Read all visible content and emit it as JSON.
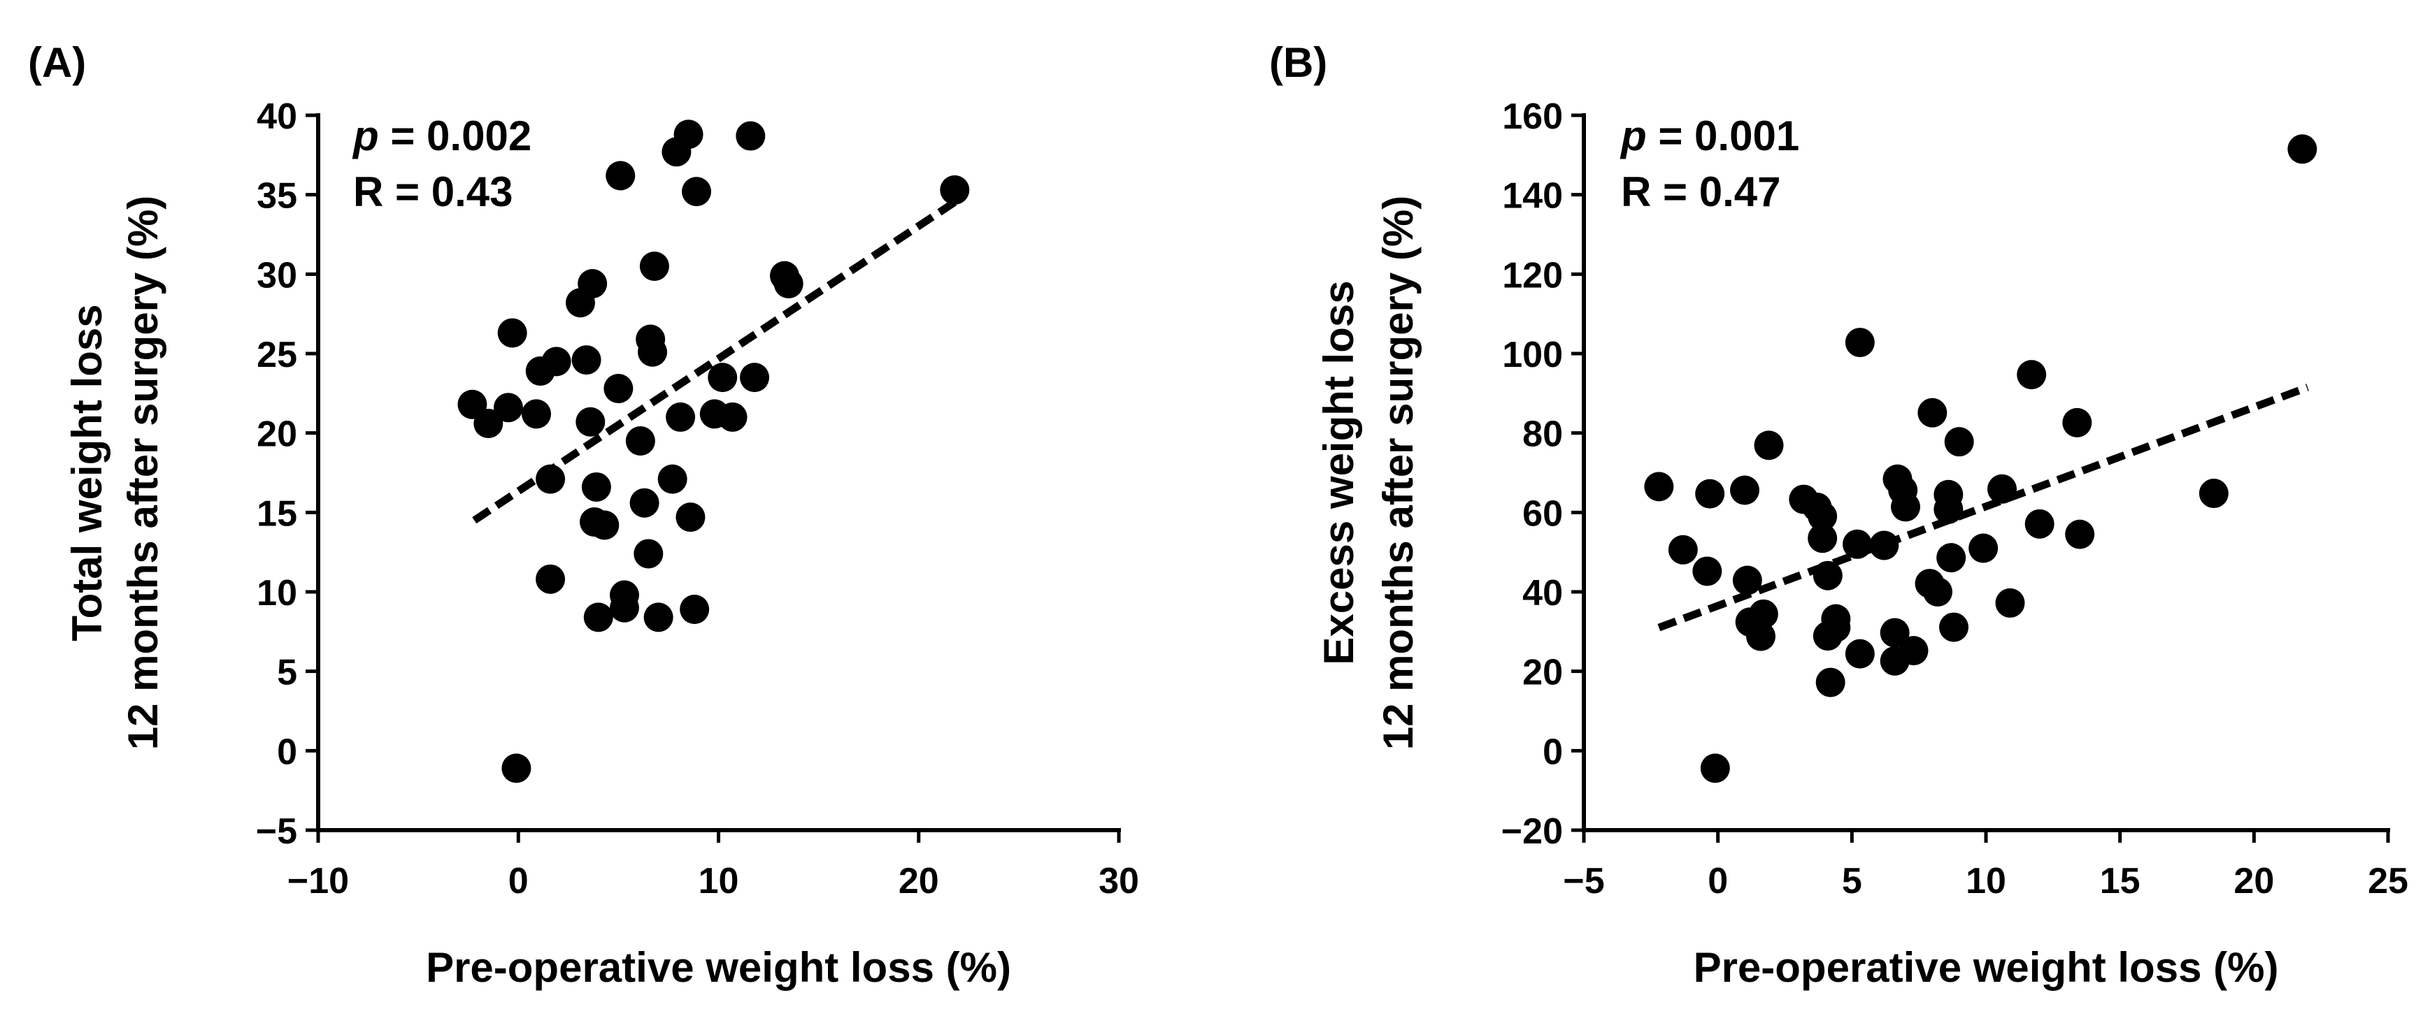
{
  "chart_data": [
    {
      "panel_label": "(A)",
      "type": "scatter",
      "xlabel": "Pre-operative weight loss (%)",
      "ylabel_lines": [
        "Total weight loss",
        "12 months after surgery (%)"
      ],
      "xlim": [
        -10,
        30
      ],
      "ylim": [
        -5,
        40
      ],
      "xticks": [
        -10,
        0,
        10,
        20,
        30
      ],
      "yticks": [
        -5,
        0,
        5,
        10,
        15,
        20,
        25,
        30,
        35,
        40
      ],
      "tick_labels_x": [
        "−10",
        "0",
        "10",
        "20",
        "30"
      ],
      "tick_labels_y": [
        "−5",
        "0",
        "5",
        "10",
        "15",
        "20",
        "25",
        "30",
        "35",
        "40"
      ],
      "annotation": {
        "p_label": "p",
        "p_value": " = 0.002",
        "r_text": "R = 0.43"
      },
      "trendline": {
        "x": [
          -2.2,
          22
        ],
        "y": [
          14.5,
          34.7
        ]
      },
      "points": [
        [
          -2.3,
          21.8
        ],
        [
          -1.5,
          20.6
        ],
        [
          -0.5,
          21.6
        ],
        [
          -0.3,
          26.3
        ],
        [
          -0.1,
          -1.1
        ],
        [
          0.9,
          21.2
        ],
        [
          1.1,
          23.9
        ],
        [
          1.6,
          17.1
        ],
        [
          1.6,
          10.8
        ],
        [
          1.9,
          24.5
        ],
        [
          3.1,
          28.2
        ],
        [
          3.4,
          24.6
        ],
        [
          3.6,
          20.7
        ],
        [
          3.7,
          29.4
        ],
        [
          3.8,
          14.4
        ],
        [
          3.9,
          16.6
        ],
        [
          4.0,
          8.4
        ],
        [
          4.3,
          14.2
        ],
        [
          5.0,
          22.8
        ],
        [
          5.1,
          36.2
        ],
        [
          5.3,
          9.8
        ],
        [
          5.3,
          9.0
        ],
        [
          6.1,
          19.5
        ],
        [
          6.3,
          15.6
        ],
        [
          6.5,
          12.4
        ],
        [
          6.6,
          25.9
        ],
        [
          6.7,
          25.1
        ],
        [
          6.8,
          30.5
        ],
        [
          7.0,
          8.4
        ],
        [
          7.7,
          17.1
        ],
        [
          7.9,
          37.7
        ],
        [
          8.1,
          21.0
        ],
        [
          8.5,
          38.8
        ],
        [
          8.6,
          14.7
        ],
        [
          8.8,
          8.9
        ],
        [
          8.9,
          35.2
        ],
        [
          9.8,
          21.2
        ],
        [
          10.2,
          23.5
        ],
        [
          10.7,
          21.0
        ],
        [
          11.6,
          38.7
        ],
        [
          11.8,
          23.5
        ],
        [
          13.3,
          29.9
        ],
        [
          13.5,
          29.4
        ],
        [
          21.8,
          35.3
        ]
      ]
    },
    {
      "panel_label": "(B)",
      "type": "scatter",
      "xlabel": "Pre-operative weight loss (%)",
      "ylabel_lines": [
        "Excess weight loss",
        "12 months after surgery (%)"
      ],
      "xlim": [
        -5,
        25
      ],
      "ylim": [
        -20,
        160
      ],
      "xticks": [
        -5,
        0,
        5,
        10,
        15,
        20,
        25
      ],
      "yticks": [
        -20,
        0,
        20,
        40,
        60,
        80,
        100,
        120,
        140,
        160
      ],
      "tick_labels_x": [
        "−5",
        "0",
        "5",
        "10",
        "15",
        "20",
        "25"
      ],
      "tick_labels_y": [
        "−20",
        "0",
        "20",
        "40",
        "60",
        "80",
        "100",
        "120",
        "140",
        "160"
      ],
      "annotation": {
        "p_label": "p",
        "p_value": " = 0.001",
        "r_text": "R = 0.47"
      },
      "trendline": {
        "x": [
          -2.2,
          22
        ],
        "y": [
          31,
          91.5
        ]
      },
      "points": [
        [
          -2.2,
          66.5
        ],
        [
          -1.3,
          50.6
        ],
        [
          -0.3,
          64.7
        ],
        [
          -0.4,
          45.2
        ],
        [
          -0.1,
          -4.4
        ],
        [
          1.0,
          65.6
        ],
        [
          1.1,
          42.9
        ],
        [
          1.2,
          32.4
        ],
        [
          1.6,
          28.8
        ],
        [
          1.7,
          34.4
        ],
        [
          1.9,
          76.9
        ],
        [
          3.2,
          63.3
        ],
        [
          3.7,
          61.3
        ],
        [
          3.9,
          59.0
        ],
        [
          3.9,
          53.5
        ],
        [
          4.1,
          44.1
        ],
        [
          4.1,
          28.9
        ],
        [
          4.2,
          17.2
        ],
        [
          4.4,
          33.2
        ],
        [
          4.4,
          31.0
        ],
        [
          5.2,
          52.0
        ],
        [
          5.3,
          102.8
        ],
        [
          5.3,
          24.4
        ],
        [
          6.2,
          51.7
        ],
        [
          6.6,
          29.7
        ],
        [
          6.6,
          22.6
        ],
        [
          6.7,
          68.4
        ],
        [
          6.9,
          65.6
        ],
        [
          7.0,
          61.4
        ],
        [
          7.3,
          25.2
        ],
        [
          7.9,
          42.1
        ],
        [
          8.0,
          85.1
        ],
        [
          8.2,
          40.0
        ],
        [
          8.6,
          60.8
        ],
        [
          8.6,
          64.5
        ],
        [
          8.7,
          48.6
        ],
        [
          8.8,
          31.1
        ],
        [
          9.0,
          77.8
        ],
        [
          9.9,
          51.0
        ],
        [
          10.6,
          65.9
        ],
        [
          10.9,
          37.2
        ],
        [
          11.7,
          94.7
        ],
        [
          12.0,
          57.1
        ],
        [
          13.4,
          82.6
        ],
        [
          13.5,
          54.5
        ],
        [
          18.5,
          64.8
        ],
        [
          21.8,
          151.5
        ]
      ]
    }
  ]
}
